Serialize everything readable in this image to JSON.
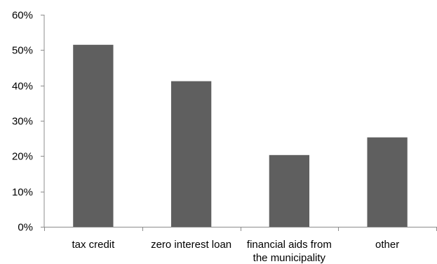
{
  "chart_data": {
    "type": "bar",
    "categories": [
      [
        "tax credit"
      ],
      [
        "zero interest loan"
      ],
      [
        "financial aids from",
        "the municipality"
      ],
      [
        "other"
      ]
    ],
    "values": [
      51.5,
      41.2,
      20.3,
      25.3
    ],
    "y_ticks": [
      "0%",
      "10%",
      "20%",
      "30%",
      "40%",
      "50%",
      "60%"
    ],
    "ylim": [
      0,
      60
    ],
    "title": "",
    "xlabel": "",
    "ylabel": "",
    "grid": false,
    "legend": "none",
    "colors": {
      "bar": "#5f5f5f",
      "axis": "#8c8c8c"
    }
  }
}
